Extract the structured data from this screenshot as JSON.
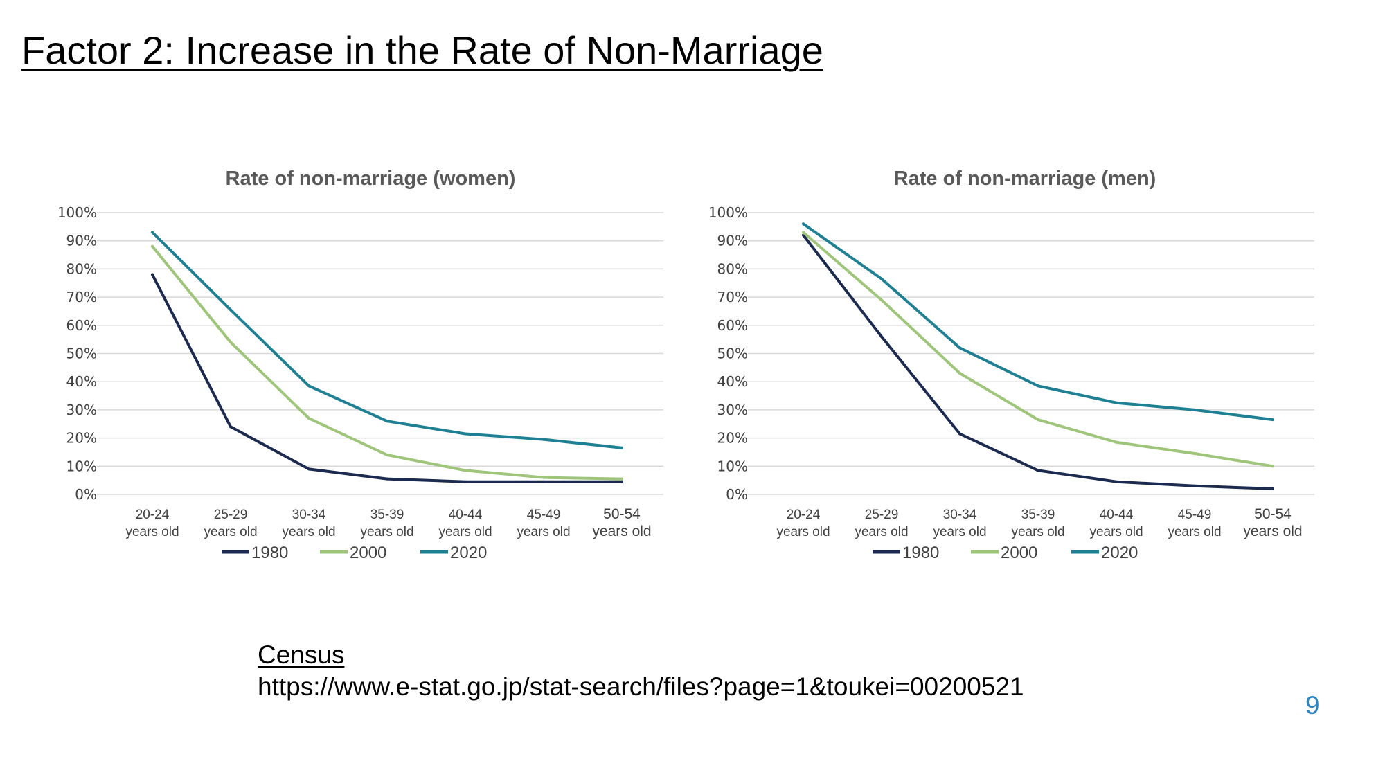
{
  "slide": {
    "title": "Factor 2: Increase in the Rate of Non-Marriage",
    "source_label": "Census",
    "source_url": "https://www.e-stat.go.jp/stat-search/files?page=1&toukei=00200521",
    "page_number": "9"
  },
  "chart_data": [
    {
      "type": "line",
      "title": "Rate of non-marriage (women)",
      "categories": [
        [
          "20-24",
          "years old"
        ],
        [
          "25-29",
          "years old"
        ],
        [
          "30-34",
          "years old"
        ],
        [
          "35-39",
          "years old"
        ],
        [
          "40-44",
          "years old"
        ],
        [
          "45-49",
          "years old"
        ],
        [
          "50-54",
          "years old"
        ]
      ],
      "y_ticks": [
        "0%",
        "10%",
        "20%",
        "30%",
        "40%",
        "50%",
        "60%",
        "70%",
        "80%",
        "90%",
        "100%"
      ],
      "ylim": [
        0,
        100
      ],
      "grid": true,
      "legend": "bottom-left",
      "series": [
        {
          "name": "1980",
          "color": "#1b2a4e",
          "values": [
            78,
            24,
            9,
            5.5,
            4.5,
            4.5,
            4.5
          ]
        },
        {
          "name": "2000",
          "color": "#9fc57b",
          "values": [
            88,
            54,
            27,
            14,
            8.5,
            6,
            5.5
          ]
        },
        {
          "name": "2020",
          "color": "#1f7f93",
          "values": [
            93,
            65.5,
            38.5,
            26,
            21.5,
            19.5,
            16.5
          ]
        }
      ]
    },
    {
      "type": "line",
      "title": "Rate of non-marriage (men)",
      "categories": [
        [
          "20-24",
          "years old"
        ],
        [
          "25-29",
          "years old"
        ],
        [
          "30-34",
          "years old"
        ],
        [
          "35-39",
          "years old"
        ],
        [
          "40-44",
          "years old"
        ],
        [
          "45-49",
          "years old"
        ],
        [
          "50-54",
          "years old"
        ]
      ],
      "y_ticks": [
        "0%",
        "10%",
        "20%",
        "30%",
        "40%",
        "50%",
        "60%",
        "70%",
        "80%",
        "90%",
        "100%"
      ],
      "ylim": [
        0,
        100
      ],
      "grid": true,
      "legend": "bottom-left",
      "series": [
        {
          "name": "1980",
          "color": "#1b2a4e",
          "values": [
            92,
            56,
            21.5,
            8.5,
            4.5,
            3,
            2
          ]
        },
        {
          "name": "2000",
          "color": "#9fc57b",
          "values": [
            93,
            69,
            43,
            26.5,
            18.5,
            14.5,
            10
          ]
        },
        {
          "name": "2020",
          "color": "#1f7f93",
          "values": [
            96,
            76.5,
            52,
            38.5,
            32.5,
            30,
            26.5
          ]
        }
      ]
    }
  ]
}
